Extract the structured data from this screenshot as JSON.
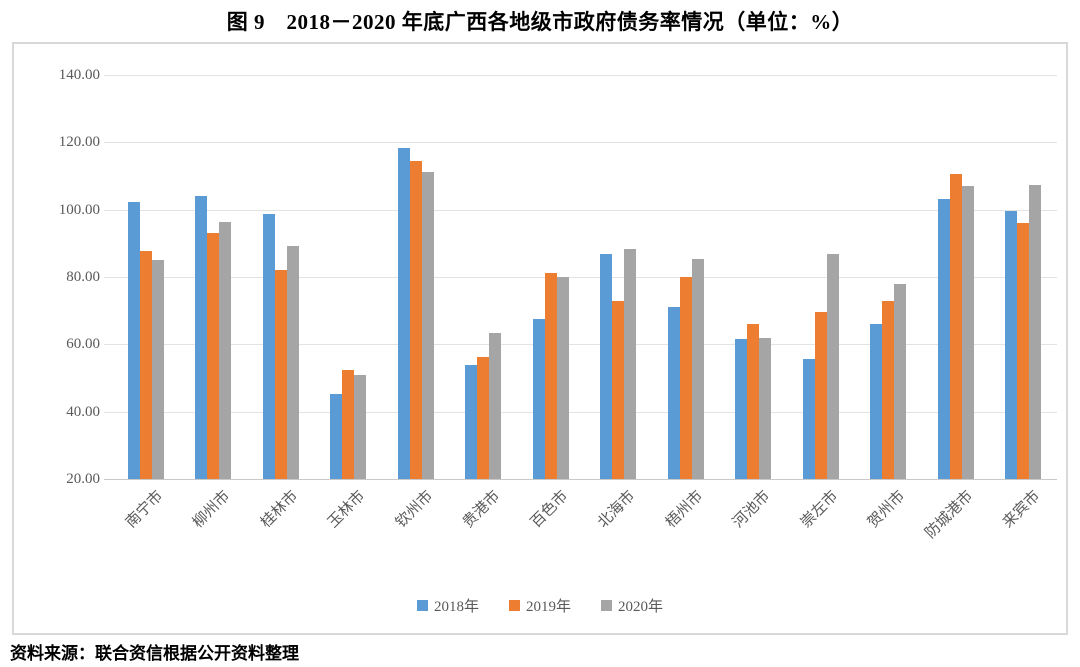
{
  "title": "图 9　2018－2020 年底广西各地级市政府债务率情况（单位：%）",
  "source": "资料来源：联合资信根据公开资料整理",
  "chart_data": {
    "type": "bar",
    "title": "图 9　2018－2020 年底广西各地级市政府债务率情况（单位：%）",
    "xlabel": "",
    "ylabel": "",
    "unit": "%",
    "ylim": [
      20,
      140
    ],
    "ytick_step": 20,
    "ytick_labels": [
      "140.00",
      "120.00",
      "100.00",
      "80.00",
      "60.00",
      "40.00",
      "20.00"
    ],
    "grid": true,
    "legend_position": "bottom",
    "categories": [
      "南宁市",
      "柳州市",
      "桂林市",
      "玉林市",
      "钦州市",
      "贵港市",
      "百色市",
      "北海市",
      "梧州市",
      "河池市",
      "崇左市",
      "贺州市",
      "防城港市",
      "来宾市"
    ],
    "series": [
      {
        "name": "2018年",
        "color": "#5B9BD5",
        "values": [
          102.4,
          104.1,
          98.8,
          45.3,
          118.4,
          53.8,
          67.5,
          86.7,
          71.2,
          61.6,
          55.7,
          66.0,
          103.2,
          99.6
        ]
      },
      {
        "name": "2019年",
        "color": "#ED7D31",
        "values": [
          87.6,
          93.1,
          82.2,
          52.4,
          114.6,
          56.1,
          81.1,
          73.0,
          80.0,
          66.0,
          69.7,
          72.9,
          110.7,
          96.1
        ]
      },
      {
        "name": "2020年",
        "color": "#A5A5A5",
        "values": [
          85.0,
          96.2,
          89.3,
          51.0,
          111.2,
          63.3,
          80.0,
          88.2,
          85.2,
          62.0,
          86.9,
          78.0,
          106.9,
          107.3
        ]
      }
    ]
  },
  "colors": {
    "series_2018": "#5B9BD5",
    "series_2019": "#ED7D31",
    "series_2020": "#A5A5A5",
    "grid": "#E3E3E3",
    "axis": "#C9C9C9",
    "tick_text": "#595959",
    "frame_border": "#D8D8D8"
  }
}
